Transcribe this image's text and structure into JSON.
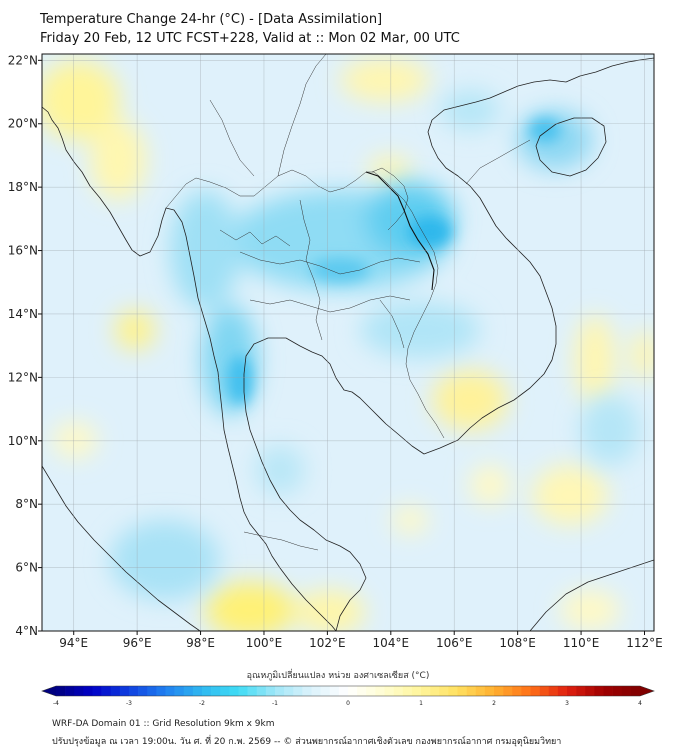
{
  "title": "Temperature Change 24-hr (°C) - [Data Assimilation]",
  "subtitle": "Friday 20 Feb, 12 UTC FCST+228, Valid at :: Mon 02 Mar, 00 UTC",
  "map": {
    "lon_range": [
      93,
      112.3
    ],
    "lat_range": [
      4,
      22.2
    ],
    "lon_ticks": [
      94,
      96,
      98,
      100,
      102,
      104,
      106,
      108,
      110,
      112
    ],
    "lat_ticks": [
      4,
      6,
      8,
      10,
      12,
      14,
      16,
      18,
      20,
      22
    ],
    "lon_tick_labels": [
      "94°E",
      "96°E",
      "98°E",
      "100°E",
      "102°E",
      "104°E",
      "106°E",
      "108°E",
      "110°E",
      "112°E"
    ],
    "lat_tick_labels": [
      "4°N",
      "6°N",
      "8°N",
      "10°N",
      "12°N",
      "14°N",
      "16°N",
      "18°N",
      "20°N",
      "22°N"
    ],
    "grid": true,
    "background_color": "#dff1fb"
  },
  "colorbar": {
    "title": "อุณหภูมิเปลี่ยนแปลง หน่วย องศาเซลเซียส (°C)",
    "min": -4,
    "max": 4,
    "ticks": [
      -4,
      -3,
      -2,
      -1,
      0,
      1,
      2,
      3,
      4
    ],
    "tick_labels": [
      "-4",
      "-3",
      "-2",
      "-1",
      "0",
      "1",
      "2",
      "3",
      "4"
    ],
    "colors": [
      "#000080",
      "#0000c8",
      "#1040e0",
      "#2080f0",
      "#30b8f0",
      "#40dcf5",
      "#a0e6f7",
      "#dcf2fb",
      "#ffffff",
      "#fffdd0",
      "#fff59a",
      "#ffe060",
      "#ffb030",
      "#ff7018",
      "#e02010",
      "#a00000",
      "#800000"
    ]
  },
  "footer": {
    "line1": "WRF-DA Domain 01 :: Grid Resolution 9km x 9km",
    "line2": "ปรับปรุงข้อมูล ณ เวลา 19:00น. วัน ศ. ที่ 20 ก.พ. 2569 -- © ส่วนพยากรณ์อากาศเชิงตัวเลข กองพยากรณ์อากาศ กรมอุตุนิยมวิทยา"
  }
}
